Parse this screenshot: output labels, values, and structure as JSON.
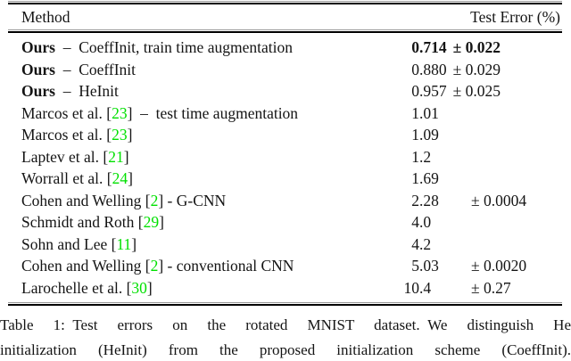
{
  "colors": {
    "citation_green": "#00e000",
    "text": "#141414",
    "rule": "#000000"
  },
  "table": {
    "header": {
      "method": "Method",
      "error": "Test Error (%)"
    },
    "rows": [
      {
        "segments": [
          {
            "text": "Ours",
            "bold": true
          },
          {
            "text": "  –  CoeffInit, train time augmentation"
          }
        ],
        "value_int": "0",
        "value_frac": ".714",
        "pm": "± 0.022",
        "pm_inline": true,
        "value_bold": true
      },
      {
        "segments": [
          {
            "text": "Ours",
            "bold": true
          },
          {
            "text": "  –  CoeffInit"
          }
        ],
        "value_int": "0",
        "value_frac": ".880",
        "pm": "± 0.029",
        "pm_inline": true
      },
      {
        "segments": [
          {
            "text": "Ours",
            "bold": true
          },
          {
            "text": "  –  HeInit"
          }
        ],
        "value_int": "0",
        "value_frac": ".957",
        "pm": "± 0.025",
        "pm_inline": true
      },
      {
        "segments": [
          {
            "text": "Marcos et al. ["
          },
          {
            "text": "23",
            "green": true
          },
          {
            "text": "]  –  test time augmentation"
          }
        ],
        "value_int": "1",
        "value_frac": ".01",
        "pm": ""
      },
      {
        "segments": [
          {
            "text": "Marcos et al. ["
          },
          {
            "text": "23",
            "green": true
          },
          {
            "text": "]"
          }
        ],
        "value_int": "1",
        "value_frac": ".09",
        "pm": ""
      },
      {
        "segments": [
          {
            "text": "Laptev et al. ["
          },
          {
            "text": "21",
            "green": true
          },
          {
            "text": "]"
          }
        ],
        "value_int": "1",
        "value_frac": ".2",
        "pm": ""
      },
      {
        "segments": [
          {
            "text": "Worrall et al. ["
          },
          {
            "text": "24",
            "green": true
          },
          {
            "text": "]"
          }
        ],
        "value_int": "1",
        "value_frac": ".69",
        "pm": ""
      },
      {
        "segments": [
          {
            "text": "Cohen and Welling ["
          },
          {
            "text": "2",
            "green": true
          },
          {
            "text": "] - G-CNN"
          }
        ],
        "value_int": "2",
        "value_frac": ".28",
        "pm": "± 0.0004"
      },
      {
        "segments": [
          {
            "text": "Schmidt and Roth ["
          },
          {
            "text": "29",
            "green": true
          },
          {
            "text": "]"
          }
        ],
        "value_int": "4",
        "value_frac": ".0",
        "pm": ""
      },
      {
        "segments": [
          {
            "text": "Sohn and Lee ["
          },
          {
            "text": "11",
            "green": true
          },
          {
            "text": "]"
          }
        ],
        "value_int": "4",
        "value_frac": ".2",
        "pm": ""
      },
      {
        "segments": [
          {
            "text": "Cohen and Welling ["
          },
          {
            "text": "2",
            "green": true
          },
          {
            "text": "] - conventional CNN"
          }
        ],
        "value_int": "5",
        "value_frac": ".03",
        "pm": "± 0.0020"
      },
      {
        "segments": [
          {
            "text": "Larochelle et al. ["
          },
          {
            "text": "30",
            "green": true
          },
          {
            "text": "]"
          }
        ],
        "value_int": "10",
        "value_frac": ".4",
        "pm": "± 0.27"
      }
    ]
  },
  "caption": {
    "lines": [
      "Table 1: Test errors on the rotated MNIST dataset. We distinguish He",
      "initialization (HeInit) from the proposed initialization scheme (CoeffInit)."
    ]
  }
}
